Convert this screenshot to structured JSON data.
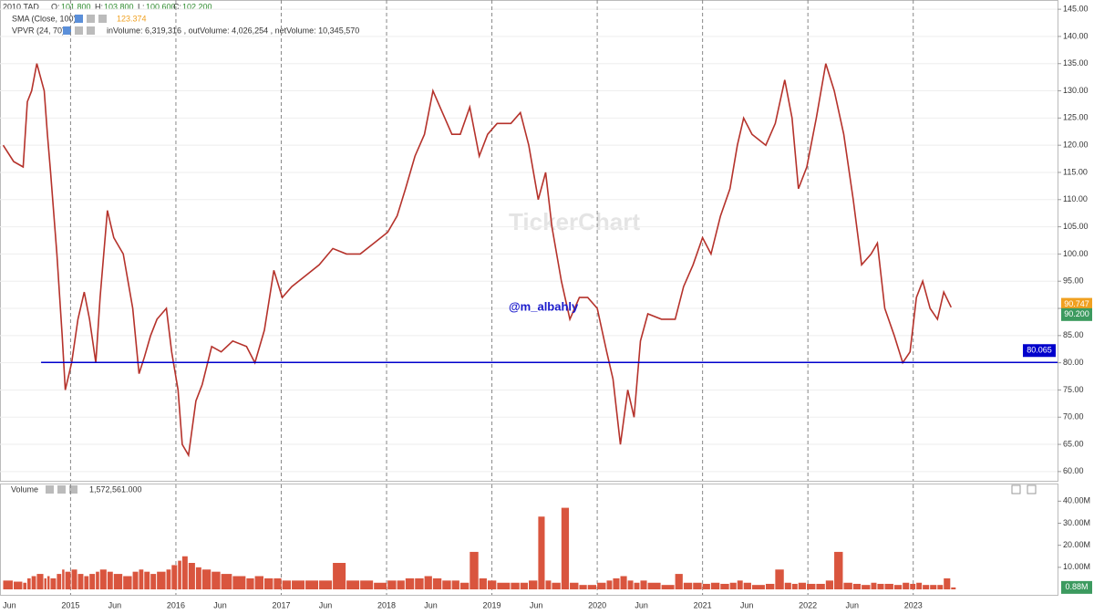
{
  "header": {
    "symbol": "2010.TAD",
    "ohlc": [
      {
        "key": "O:",
        "value": "101.800"
      },
      {
        "key": "H:",
        "value": "103.800"
      },
      {
        "key": "L:",
        "value": "100.600"
      },
      {
        "key": "C:",
        "value": "102.200"
      }
    ],
    "sma": {
      "label": "SMA (Close, 100)",
      "value": "123.374"
    },
    "vpvr": {
      "label": "VPVR (24, 70)",
      "stats": "inVolume: 6,319,316 , outVolume: 4,026,254 , netVolume: 10,345,570"
    }
  },
  "watermark": "TickerChart",
  "chart_data": [
    {
      "type": "line",
      "annotation": "@m_albahly",
      "color": "#b5322b",
      "x": [
        2014.36,
        2014.46,
        2014.55,
        2014.59,
        2014.63,
        2014.68,
        2014.75,
        2014.78,
        2014.81,
        2014.87,
        2014.92,
        2014.95,
        2015.01,
        2015.07,
        2015.13,
        2015.18,
        2015.24,
        2015.28,
        2015.35,
        2015.41,
        2015.5,
        2015.59,
        2015.65,
        2015.7,
        2015.76,
        2015.82,
        2015.91,
        2015.96,
        2016.02,
        2016.06,
        2016.12,
        2016.19,
        2016.25,
        2016.34,
        2016.43,
        2016.54,
        2016.67,
        2016.75,
        2016.84,
        2016.93,
        2017.01,
        2017.1,
        2017.23,
        2017.36,
        2017.49,
        2017.62,
        2017.75,
        2017.88,
        2018.01,
        2018.1,
        2018.18,
        2018.27,
        2018.36,
        2018.44,
        2018.53,
        2018.62,
        2018.7,
        2018.79,
        2018.88,
        2018.96,
        2019.05,
        2019.18,
        2019.27,
        2019.35,
        2019.44,
        2019.51,
        2019.57,
        2019.66,
        2019.74,
        2019.83,
        2019.91,
        2020.0,
        2020.09,
        2020.15,
        2020.22,
        2020.29,
        2020.35,
        2020.41,
        2020.48,
        2020.61,
        2020.74,
        2020.82,
        2020.91,
        2021.0,
        2021.08,
        2021.17,
        2021.26,
        2021.33,
        2021.39,
        2021.47,
        2021.6,
        2021.69,
        2021.78,
        2021.85,
        2021.91,
        2021.99,
        2022.08,
        2022.17,
        2022.25,
        2022.34,
        2022.43,
        2022.51,
        2022.6,
        2022.66,
        2022.73,
        2022.82,
        2022.9,
        2022.97,
        2023.03,
        2023.09,
        2023.16,
        2023.23,
        2023.29,
        2023.36
      ],
      "values": [
        120,
        117,
        116,
        128,
        130,
        135,
        130,
        122,
        115,
        100,
        85,
        75,
        80,
        88,
        93,
        88,
        80,
        92,
        108,
        103,
        100,
        90,
        78,
        81,
        85,
        88,
        90,
        82,
        75,
        65,
        63,
        73,
        76,
        83,
        82,
        84,
        83,
        80,
        86,
        97,
        92,
        94,
        96,
        98,
        101,
        100,
        100,
        102,
        104,
        107,
        112,
        118,
        122,
        130,
        126,
        122,
        122,
        127,
        118,
        122,
        124,
        124,
        126,
        120,
        110,
        115,
        105,
        95,
        88,
        92,
        92,
        90,
        82,
        77,
        65,
        75,
        70,
        84,
        89,
        88,
        88,
        94,
        98,
        103,
        100,
        107,
        112,
        120,
        125,
        122,
        120,
        124,
        132,
        125,
        112,
        116,
        125,
        135,
        130,
        122,
        110,
        98,
        100,
        102,
        90,
        85,
        80,
        82,
        92,
        95,
        90,
        88,
        93,
        90.2
      ],
      "last_value": {
        "value": 90.2,
        "label": "90.200"
      },
      "sma_last": 90.747,
      "hline": {
        "value": 80.065,
        "x_start": 2014.72,
        "color": "#0000cc"
      },
      "xlim": [
        2014.33,
        2024.37
      ],
      "ylim": [
        58.3,
        146.7
      ],
      "xticks": [
        {
          "value": 2014.42,
          "label": "Jun"
        },
        2015,
        {
          "value": 2015.42,
          "label": "Jun"
        },
        2016,
        {
          "value": 2016.42,
          "label": "Jun"
        },
        2017,
        {
          "value": 2017.42,
          "label": "Jun"
        },
        2018,
        {
          "value": 2018.42,
          "label": "Jun"
        },
        2019,
        {
          "value": 2019.42,
          "label": "Jun"
        },
        2020,
        {
          "value": 2020.42,
          "label": "Jun"
        },
        2021,
        {
          "value": 2021.42,
          "label": "Jun"
        },
        2022,
        {
          "value": 2022.42,
          "label": "Jun"
        },
        2023
      ],
      "yticks": [
        {
          "value": 60,
          "label": "60.00"
        },
        {
          "value": 65,
          "label": "65.00"
        },
        {
          "value": 70,
          "label": "70.00"
        },
        {
          "value": 75,
          "label": "75.00"
        },
        {
          "value": 80,
          "label": "80.00"
        },
        {
          "value": 85,
          "label": "85.00"
        },
        {
          "value": 90,
          "label": "90.00"
        },
        {
          "value": 95,
          "label": "95.00"
        },
        {
          "value": 100,
          "label": "100.00"
        },
        {
          "value": 105,
          "label": "105.00"
        },
        {
          "value": 110,
          "label": "110.00"
        },
        {
          "value": 115,
          "label": "115.00"
        },
        {
          "value": 120,
          "label": "120.00"
        },
        {
          "value": 125,
          "label": "125.00"
        },
        {
          "value": 130,
          "label": "130.00"
        },
        {
          "value": 135,
          "label": "135.00"
        },
        {
          "value": 140,
          "label": "140.00"
        },
        {
          "value": 145,
          "label": "145.00"
        }
      ],
      "grid": true
    },
    {
      "type": "bar",
      "title": "Volume",
      "subtitle": "1,572,561.000",
      "color": "#d9553e",
      "x": [
        2014.36,
        2014.46,
        2014.55,
        2014.59,
        2014.63,
        2014.68,
        2014.75,
        2014.78,
        2014.81,
        2014.87,
        2014.92,
        2014.95,
        2015.01,
        2015.07,
        2015.13,
        2015.18,
        2015.24,
        2015.28,
        2015.35,
        2015.41,
        2015.5,
        2015.59,
        2015.65,
        2015.7,
        2015.76,
        2015.82,
        2015.91,
        2015.96,
        2016.02,
        2016.06,
        2016.12,
        2016.19,
        2016.25,
        2016.34,
        2016.43,
        2016.54,
        2016.67,
        2016.75,
        2016.84,
        2016.93,
        2017.01,
        2017.1,
        2017.23,
        2017.36,
        2017.49,
        2017.62,
        2017.75,
        2017.88,
        2018.01,
        2018.1,
        2018.18,
        2018.27,
        2018.36,
        2018.44,
        2018.53,
        2018.62,
        2018.7,
        2018.79,
        2018.88,
        2018.96,
        2019.05,
        2019.18,
        2019.27,
        2019.35,
        2019.44,
        2019.51,
        2019.57,
        2019.66,
        2019.74,
        2019.83,
        2019.91,
        2020.0,
        2020.09,
        2020.15,
        2020.22,
        2020.29,
        2020.35,
        2020.41,
        2020.48,
        2020.61,
        2020.74,
        2020.82,
        2020.91,
        2021.0,
        2021.08,
        2021.17,
        2021.26,
        2021.33,
        2021.39,
        2021.47,
        2021.6,
        2021.69,
        2021.78,
        2021.85,
        2021.91,
        2021.99,
        2022.08,
        2022.17,
        2022.25,
        2022.34,
        2022.43,
        2022.51,
        2022.6,
        2022.66,
        2022.73,
        2022.82,
        2022.9,
        2022.97,
        2023.03,
        2023.09,
        2023.16,
        2023.23,
        2023.29,
        2023.36
      ],
      "values": [
        4000000,
        3500000,
        3000000,
        5000000,
        6000000,
        7000000,
        5000000,
        6000000,
        5000000,
        7000000,
        9000000,
        8000000,
        9000000,
        7000000,
        6000000,
        7000000,
        8000000,
        9000000,
        8000000,
        7000000,
        6000000,
        8000000,
        9000000,
        8000000,
        7000000,
        8000000,
        9000000,
        11000000,
        13000000,
        15000000,
        12000000,
        10000000,
        9000000,
        8000000,
        7000000,
        6000000,
        5000000,
        6000000,
        5000000,
        5000000,
        4000000,
        4000000,
        4000000,
        4000000,
        12000000,
        4000000,
        4000000,
        3000000,
        4000000,
        4000000,
        5000000,
        5000000,
        6000000,
        5000000,
        4000000,
        4000000,
        3000000,
        17000000,
        5000000,
        4000000,
        3000000,
        3000000,
        3000000,
        4000000,
        33000000,
        4000000,
        3000000,
        37000000,
        3000000,
        2000000,
        2000000,
        3000000,
        4000000,
        5000000,
        6000000,
        4000000,
        3000000,
        4000000,
        3000000,
        2000000,
        7000000,
        3000000,
        3000000,
        2500000,
        3000000,
        2500000,
        3000000,
        4000000,
        3000000,
        2000000,
        2500000,
        9000000,
        3000000,
        2500000,
        3000000,
        2500000,
        2500000,
        4000000,
        17000000,
        3000000,
        2500000,
        2000000,
        3000000,
        2500000,
        2500000,
        2000000,
        3000000,
        2500000,
        3000000,
        2000000,
        2000000,
        2000000,
        5000000,
        880000
      ],
      "last_value": {
        "value": 880000,
        "label": "0.88M"
      },
      "ylim": [
        0,
        48000000
      ],
      "yticks": [
        {
          "value": 10000000,
          "label": "10.00M"
        },
        {
          "value": 20000000,
          "label": "20.00M"
        },
        {
          "value": 30000000,
          "label": "30.00M"
        },
        {
          "value": 40000000,
          "label": "40.00M"
        }
      ]
    }
  ]
}
